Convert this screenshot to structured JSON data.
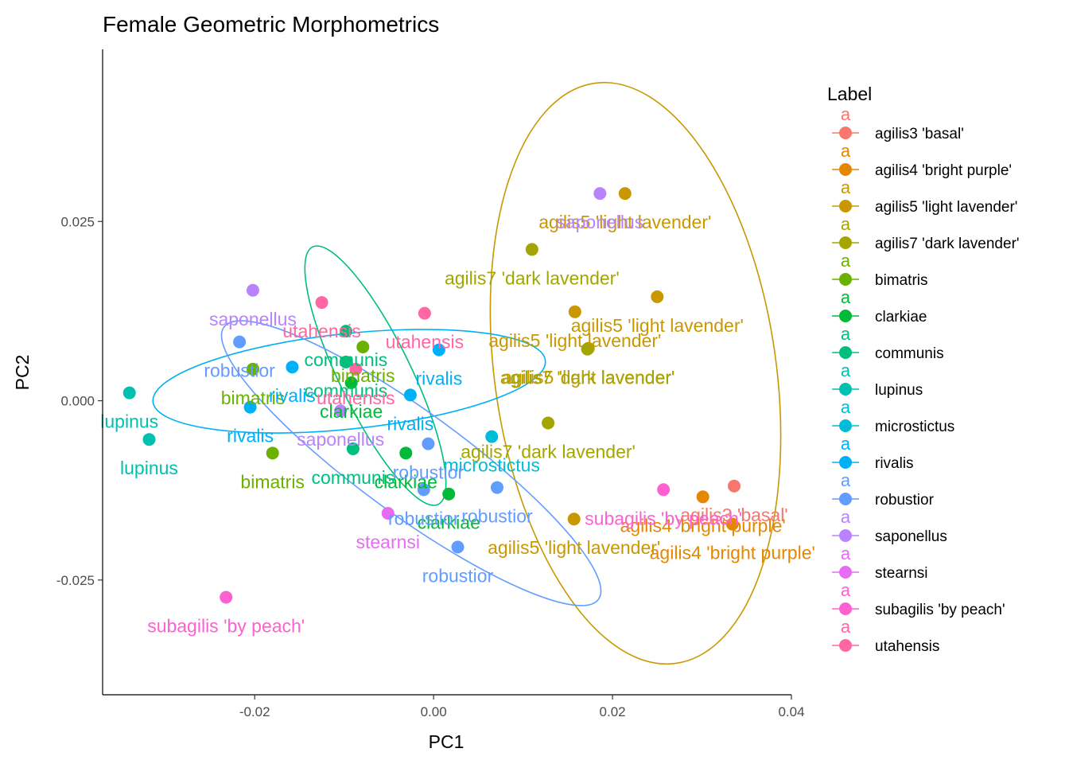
{
  "chart_data": {
    "type": "scatter",
    "title": "Female Geometric Morphometrics",
    "xlabel": "PC1",
    "ylabel": "PC2",
    "xlim": [
      -0.037,
      0.04
    ],
    "ylim": [
      -0.041,
      0.049
    ],
    "xticks": [
      -0.02,
      0.0,
      0.02,
      0.04
    ],
    "yticks": [
      -0.025,
      0.0,
      0.025
    ],
    "xtick_labels": [
      "-0.02",
      "0.00",
      "0.02",
      "0.04"
    ],
    "ytick_labels": [
      "-0.025",
      "0.000",
      "0.025"
    ],
    "legend": {
      "title": "Label",
      "position": "right",
      "glyph": "a"
    },
    "groups": [
      {
        "name": "agilis3 'basal'",
        "color": "#F8766D"
      },
      {
        "name": "agilis4 'bright purple'",
        "color": "#E58700"
      },
      {
        "name": "agilis5 'light lavender'",
        "color": "#C99800"
      },
      {
        "name": "agilis7 'dark lavender'",
        "color": "#A3A500"
      },
      {
        "name": "bimatris",
        "color": "#6BB100"
      },
      {
        "name": "clarkiae",
        "color": "#00BA38"
      },
      {
        "name": "communis",
        "color": "#00BF7D"
      },
      {
        "name": "lupinus",
        "color": "#00C0AF"
      },
      {
        "name": "microstictus",
        "color": "#00BCD8"
      },
      {
        "name": "rivalis",
        "color": "#00B0F6"
      },
      {
        "name": "robustior",
        "color": "#619CFF"
      },
      {
        "name": "saponellus",
        "color": "#B983FF"
      },
      {
        "name": "stearnsi",
        "color": "#E76BF3"
      },
      {
        "name": "subagilis 'by peach'",
        "color": "#FD61D1"
      },
      {
        "name": "utahensis",
        "color": "#FF67A4"
      }
    ],
    "points": [
      {
        "group": 0,
        "x": 0.0336,
        "y": -0.0119,
        "label": "agilis3 'basal'"
      },
      {
        "group": 1,
        "x": 0.0301,
        "y": -0.0134,
        "label": "agilis4 'bright purple'"
      },
      {
        "group": 1,
        "x": 0.0334,
        "y": -0.0172,
        "label": "agilis4 'bright purple'"
      },
      {
        "group": 2,
        "x": 0.0214,
        "y": 0.0289,
        "label": "agilis5 'light lavender'"
      },
      {
        "group": 2,
        "x": 0.025,
        "y": 0.0145,
        "label": "agilis5 'light lavender'"
      },
      {
        "group": 2,
        "x": 0.0158,
        "y": 0.0124,
        "label": "agilis5 'light lavender'"
      },
      {
        "group": 2,
        "x": 0.0173,
        "y": 0.0073,
        "label": "agilis5 'light lavender'"
      },
      {
        "group": 2,
        "x": 0.0157,
        "y": -0.0165,
        "label": "agilis5 'light lavender'"
      },
      {
        "group": 3,
        "x": 0.011,
        "y": 0.0211,
        "label": "agilis7 'dark lavender'"
      },
      {
        "group": 3,
        "x": 0.0172,
        "y": 0.0072,
        "label": "agilis7 'dark lavender'"
      },
      {
        "group": 3,
        "x": 0.0128,
        "y": -0.0031,
        "label": "agilis7 'dark lavender'"
      },
      {
        "group": 4,
        "x": -0.0202,
        "y": 0.0044,
        "label": "bimatris"
      },
      {
        "group": 4,
        "x": -0.018,
        "y": -0.0073,
        "label": "bimatris"
      },
      {
        "group": 4,
        "x": -0.0079,
        "y": 0.0075,
        "label": "bimatris"
      },
      {
        "group": 5,
        "x": -0.0092,
        "y": 0.0025,
        "label": "clarkiae"
      },
      {
        "group": 5,
        "x": -0.0031,
        "y": -0.0073,
        "label": "clarkiae"
      },
      {
        "group": 5,
        "x": 0.0017,
        "y": -0.013,
        "label": "clarkiae"
      },
      {
        "group": 6,
        "x": -0.0098,
        "y": 0.0097,
        "label": "communis"
      },
      {
        "group": 6,
        "x": -0.0098,
        "y": 0.0054,
        "label": "communis"
      },
      {
        "group": 6,
        "x": -0.009,
        "y": -0.0067,
        "label": "communis"
      },
      {
        "group": 7,
        "x": -0.034,
        "y": 0.0011,
        "label": "lupinus"
      },
      {
        "group": 7,
        "x": -0.0318,
        "y": -0.0054,
        "label": "lupinus"
      },
      {
        "group": 8,
        "x": 0.0065,
        "y": -0.005,
        "label": "microstictus"
      },
      {
        "group": 9,
        "x": -0.0158,
        "y": 0.0047,
        "label": "rivalis"
      },
      {
        "group": 9,
        "x": -0.0205,
        "y": -0.0009,
        "label": "rivalis"
      },
      {
        "group": 9,
        "x": 0.0006,
        "y": 0.0071,
        "label": "rivalis"
      },
      {
        "group": 9,
        "x": -0.0026,
        "y": 0.0008,
        "label": "rivalis"
      },
      {
        "group": 10,
        "x": -0.0217,
        "y": 0.0082,
        "label": "robustior"
      },
      {
        "group": 10,
        "x": -0.0006,
        "y": -0.006,
        "label": "robustior"
      },
      {
        "group": 10,
        "x": 0.0071,
        "y": -0.0121,
        "label": "robustior"
      },
      {
        "group": 10,
        "x": -0.0011,
        "y": -0.0124,
        "label": "robustior"
      },
      {
        "group": 10,
        "x": 0.0027,
        "y": -0.0204,
        "label": "robustior"
      },
      {
        "group": 11,
        "x": 0.0186,
        "y": 0.0289,
        "label": "saponellus"
      },
      {
        "group": 11,
        "x": -0.0202,
        "y": 0.0154,
        "label": "saponellus"
      },
      {
        "group": 11,
        "x": -0.0104,
        "y": -0.0014,
        "label": "saponellus"
      },
      {
        "group": 12,
        "x": -0.0051,
        "y": -0.0157,
        "label": "stearnsi"
      },
      {
        "group": 13,
        "x": -0.0232,
        "y": -0.0274,
        "label": "subagilis 'by peach'"
      },
      {
        "group": 13,
        "x": 0.0257,
        "y": -0.0124,
        "label": "subagilis 'by peach'"
      },
      {
        "group": 14,
        "x": -0.0125,
        "y": 0.0137,
        "label": "utahensis"
      },
      {
        "group": 14,
        "x": -0.001,
        "y": 0.0122,
        "label": "utahensis"
      },
      {
        "group": 14,
        "x": -0.0087,
        "y": 0.0044,
        "label": "utahensis"
      }
    ]
  }
}
